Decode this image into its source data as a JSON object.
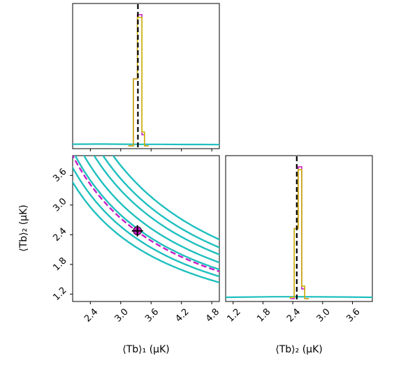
{
  "chart_data": [
    {
      "type": "histogram",
      "panel": "marginal-1",
      "xlim": [
        2.05,
        4.95
      ],
      "series": [
        {
          "color": "#1fbfbf",
          "x": [
            2.05,
            2.6,
            3.0,
            3.4,
            3.8,
            4.2,
            4.6,
            4.95
          ],
          "y": [
            0.012,
            0.013,
            0.012,
            0.011,
            0.011,
            0.01,
            0.01,
            0.009
          ]
        },
        {
          "color": "#c71ec7",
          "bins": [
            [
              3.15,
              3.25,
              0.0
            ],
            [
              3.25,
              3.33,
              0.48
            ],
            [
              3.33,
              3.42,
              0.94
            ],
            [
              3.42,
              3.47,
              0.08
            ],
            [
              3.47,
              3.55,
              0.0
            ]
          ]
        },
        {
          "color": "#c9b400",
          "bins": [
            [
              3.15,
              3.25,
              0.0
            ],
            [
              3.25,
              3.33,
              0.48
            ],
            [
              3.33,
              3.42,
              0.92
            ],
            [
              3.42,
              3.47,
              0.1
            ],
            [
              3.47,
              3.55,
              0.0
            ]
          ]
        }
      ],
      "truth": 3.34
    },
    {
      "type": "contour",
      "panel": "joint",
      "xlim": [
        2.05,
        4.95
      ],
      "ylim": [
        1.05,
        4.0
      ],
      "xticks": [
        "2.4",
        "3.0",
        "3.6",
        "4.2",
        "4.8"
      ],
      "yticks": [
        "1.2",
        "1.8",
        "2.4",
        "3.0",
        "3.6"
      ],
      "xlabel": "⟨Tb⟩₁ (μK)",
      "ylabel": "⟨Tb⟩₂ (μK)",
      "contour_products": [
        7.1,
        7.7,
        8.4,
        9.1,
        9.9,
        10.6,
        11.4
      ],
      "dashed_product": 8.2,
      "point": [
        3.33,
        2.48
      ]
    },
    {
      "type": "histogram",
      "panel": "marginal-2",
      "xlim": [
        1.05,
        4.0
      ],
      "xticks": [
        "1.2",
        "1.8",
        "2.4",
        "3.0",
        "3.6"
      ],
      "xlabel": "⟨Tb⟩₂ (μK)",
      "series": [
        {
          "color": "#1fbfbf",
          "x": [
            1.05,
            1.5,
            2.0,
            2.5,
            3.0,
            3.5,
            4.0
          ],
          "y": [
            0.01,
            0.012,
            0.014,
            0.014,
            0.013,
            0.012,
            0.01
          ]
        },
        {
          "color": "#c71ec7",
          "bins": [
            [
              2.35,
              2.43,
              0.0
            ],
            [
              2.43,
              2.51,
              0.5
            ],
            [
              2.51,
              2.58,
              0.94
            ],
            [
              2.58,
              2.64,
              0.07
            ],
            [
              2.64,
              2.72,
              0.0
            ]
          ]
        },
        {
          "color": "#c9b400",
          "bins": [
            [
              2.35,
              2.43,
              0.01
            ],
            [
              2.43,
              2.51,
              0.5
            ],
            [
              2.51,
              2.58,
              0.92
            ],
            [
              2.58,
              2.64,
              0.09
            ],
            [
              2.64,
              2.72,
              0.0
            ]
          ]
        }
      ],
      "truth": 2.48
    }
  ]
}
